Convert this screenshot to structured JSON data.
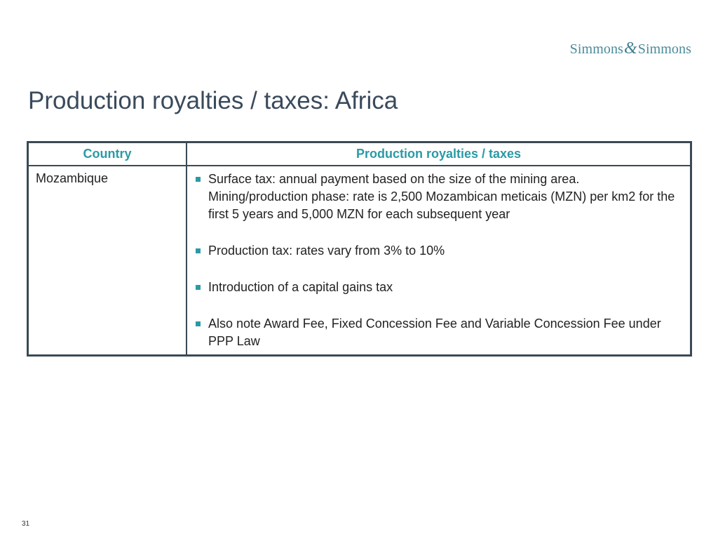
{
  "logo": {
    "part1": "Simmons",
    "amp": "&",
    "part2": "Simmons"
  },
  "title": "Production royalties / taxes: Africa",
  "table": {
    "headers": [
      "Country",
      "Production royalties / taxes"
    ],
    "rows": [
      {
        "country": "Mozambique",
        "bullets": [
          "Surface tax: annual payment based on the size of the mining area. Mining/production phase: rate is 2,500 Mozambican meticais (MZN) per km2 for the first 5 years and 5,000 MZN for each subsequent year",
          "Production tax: rates vary from 3% to 10%",
          "Introduction of a capital gains tax",
          "Also note Award Fee, Fixed Concession Fee and Variable Concession Fee under PPP Law"
        ]
      }
    ]
  },
  "page_number": "31",
  "colors": {
    "accent": "#2a9aa6",
    "title": "#3a4a5c",
    "border": "#3a4a55",
    "logo": "#4a8a9a"
  }
}
